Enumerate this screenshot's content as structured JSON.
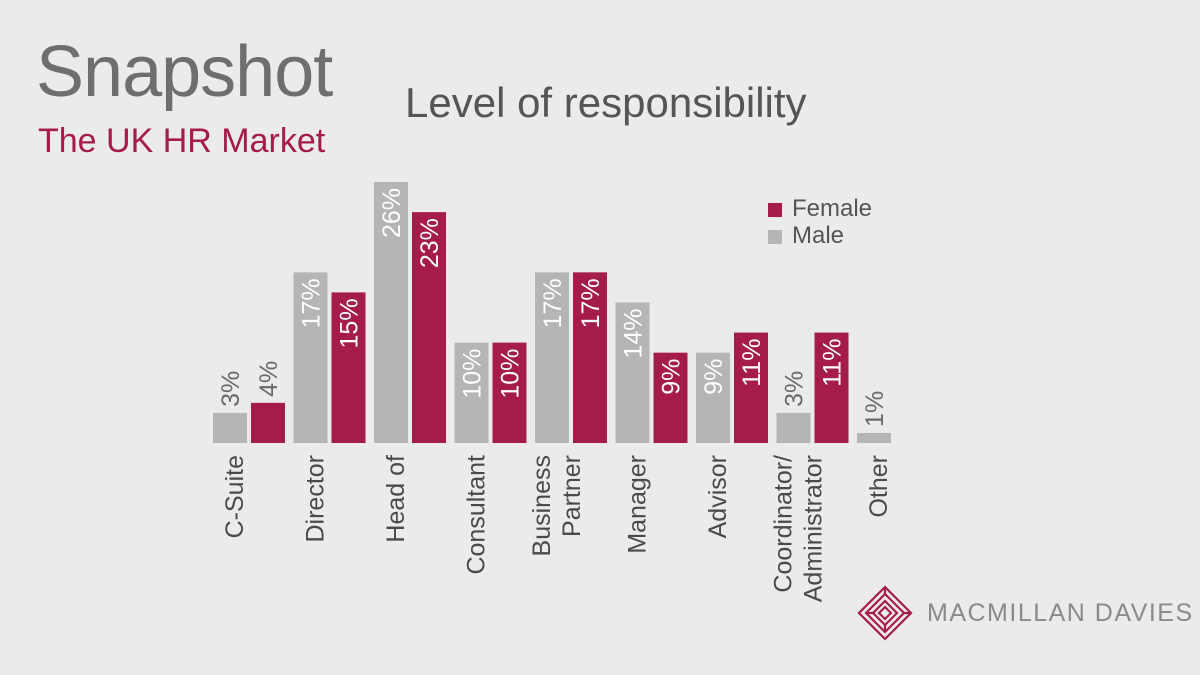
{
  "header": {
    "title": "Snapshot",
    "subtitle": "The UK HR Market"
  },
  "colors": {
    "female": "#a51c4a",
    "male": "#b4b5b6",
    "axis_text": "#4a4a4a",
    "label_text": "#ffffff",
    "label_outside": "#6a6a6a"
  },
  "chart_data": {
    "type": "bar",
    "title": "Level of responsibility",
    "categories": [
      [
        "C-Suite"
      ],
      [
        "Director"
      ],
      [
        "Head of"
      ],
      [
        "Consultant"
      ],
      [
        "Business",
        "Partner"
      ],
      [
        "Manager"
      ],
      [
        "Advisor"
      ],
      [
        "Coordinator/",
        "Administrator"
      ],
      [
        "Other"
      ]
    ],
    "series": [
      {
        "name": "Male",
        "values": [
          3,
          17,
          26,
          10,
          17,
          14,
          9,
          3,
          1
        ],
        "labels": [
          "3%",
          "17%",
          "26%",
          "10%",
          "17%",
          "14%",
          "9%",
          "3%",
          "1%"
        ]
      },
      {
        "name": "Female",
        "values": [
          4,
          15,
          23,
          10,
          17,
          9,
          11,
          11,
          null
        ],
        "labels": [
          "4%",
          "15%",
          "23%",
          "10%",
          "17%",
          "9%",
          "11%",
          "11%",
          null
        ]
      }
    ],
    "ylim": [
      0,
      26
    ],
    "grid": false,
    "legend": "top-right",
    "legend_order": [
      "Female",
      "Male"
    ]
  },
  "logo": {
    "text": "MACMILLAN DAVIES",
    "icon": "maze-diamond-icon"
  }
}
